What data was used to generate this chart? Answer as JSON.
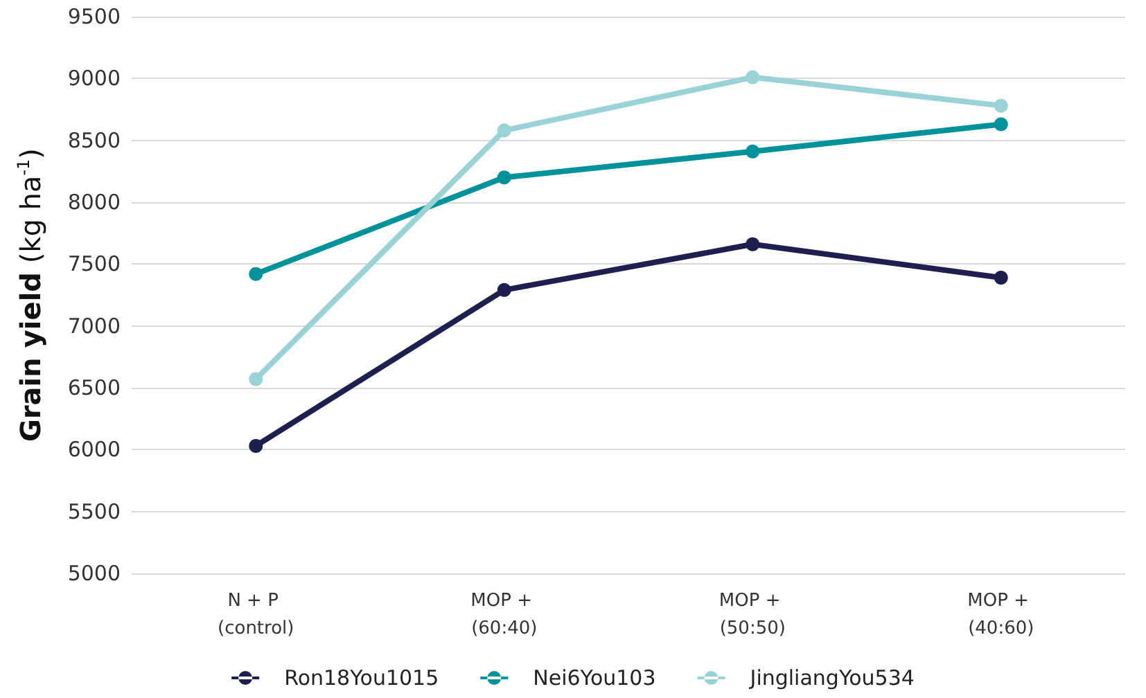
{
  "chart_data": {
    "type": "line",
    "ylabel": "Grain yield (kg ha$^{-1}$)",
    "categories": [
      "N + P (control)",
      "MOP + (60:40)",
      "MOP + (50:50)",
      "MOP + (40:60)"
    ],
    "series": [
      {
        "name": "Ron18You1015",
        "color": "#1f1f4f",
        "values": [
          6030,
          7290,
          7660,
          7390
        ]
      },
      {
        "name": "Nei6You103",
        "color": "#00929a",
        "values": [
          7420,
          8200,
          8410,
          8630
        ]
      },
      {
        "name": "JingliangYou534",
        "color": "#99d3d8",
        "values": [
          6570,
          8580,
          9010,
          8780
        ]
      }
    ],
    "ylim": [
      5000,
      9500
    ],
    "yticks": [
      5000,
      5500,
      6000,
      6500,
      7000,
      7500,
      8000,
      8500,
      9000,
      9500
    ],
    "grid": "y",
    "legend": "bottom",
    "marker": "circle",
    "line_style": "solid"
  }
}
